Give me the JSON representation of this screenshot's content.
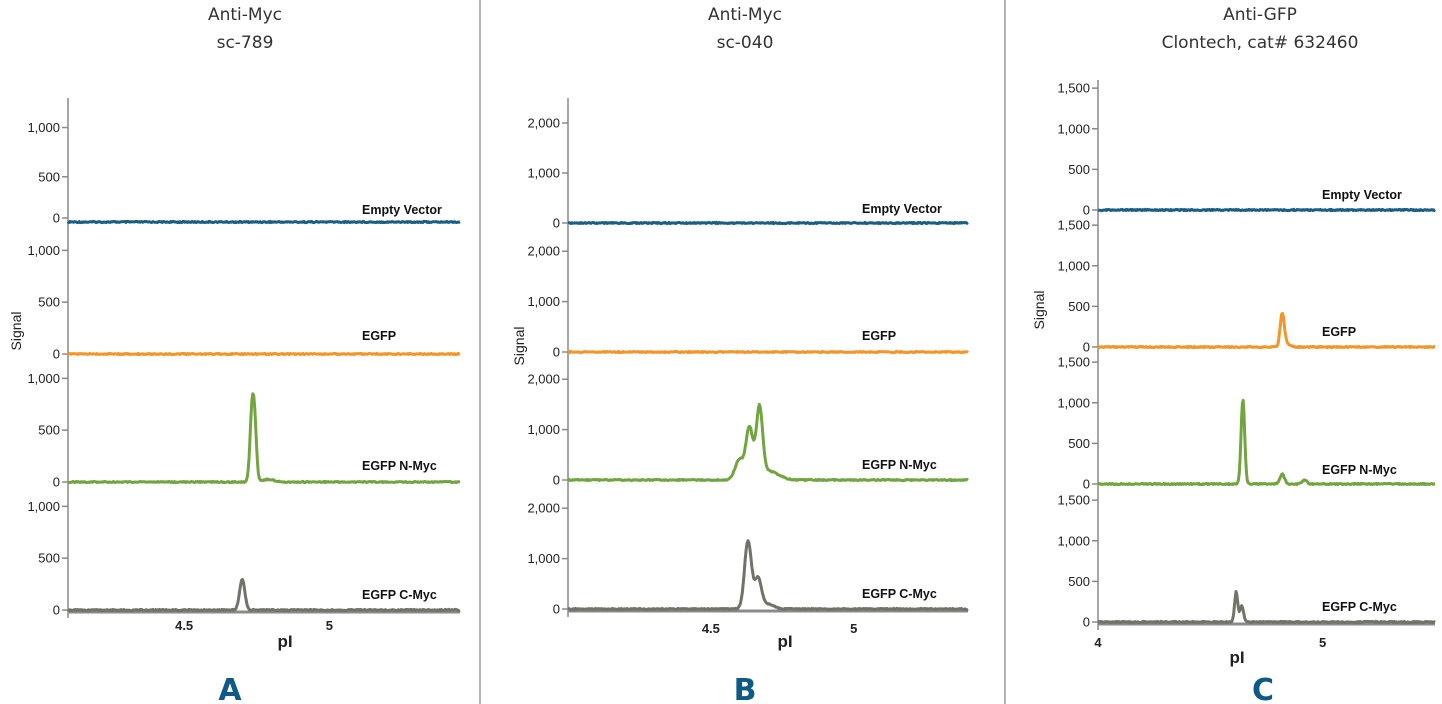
{
  "figure": {
    "panel_labels": [
      "A",
      "B",
      "C"
    ],
    "colors": {
      "empty_vector": "#1b5e84",
      "egfp": "#f2962a",
      "egfp_n_myc": "#72a440",
      "egfp_c_myc": "#727268",
      "divider": "#9a9a9a",
      "axis": "#8a8a8a",
      "panel_label": "#0e5a86"
    }
  },
  "chart_data": [
    {
      "type": "line",
      "panel": "A",
      "title": [
        "Anti-Myc",
        "sc-789"
      ],
      "xlabel": "pI",
      "ylabel": "Signal",
      "xlim": [
        4.1,
        5.45
      ],
      "x_ticks": [
        4.5,
        5
      ],
      "x_tick_labels": [
        "4.5",
        "5"
      ],
      "grid": false,
      "baseline_offset": -4,
      "series": [
        {
          "name": "Empty Vector",
          "color_key": "empty_vector",
          "ylim": [
            0,
            1300
          ],
          "y_ticks": [
            0,
            500,
            1000
          ],
          "y_tick_labels": [
            "0",
            "500",
            "1,000"
          ],
          "peaks": []
        },
        {
          "name": "EGFP",
          "color_key": "egfp",
          "ylim": [
            0,
            1100
          ],
          "y_ticks": [
            0,
            500,
            1000
          ],
          "y_tick_labels": [
            "0",
            "500",
            "1,000"
          ],
          "peaks": []
        },
        {
          "name": "EGFP N-Myc",
          "color_key": "egfp_n_myc",
          "ylim": [
            0,
            1100
          ],
          "y_ticks": [
            0,
            500,
            1000
          ],
          "y_tick_labels": [
            "0",
            "500",
            "1,000"
          ],
          "peaks": [
            {
              "x": 4.735,
              "h": 760,
              "w": 0.0075
            },
            {
              "x": 4.745,
              "h": 300,
              "w": 0.006
            },
            {
              "x": 4.79,
              "h": 25,
              "w": 0.02
            }
          ]
        },
        {
          "name": "EGFP C-Myc",
          "color_key": "egfp_c_myc",
          "ylim": [
            0,
            1100
          ],
          "y_ticks": [
            0,
            500,
            1000
          ],
          "y_tick_labels": [
            "0",
            "500",
            "1,000"
          ],
          "peaks": [
            {
              "x": 4.7,
              "h": 300,
              "w": 0.009
            }
          ]
        }
      ]
    },
    {
      "type": "line",
      "panel": "B",
      "title": [
        "Anti-Myc",
        "sc-040"
      ],
      "xlabel": "pI",
      "ylabel": "Signal",
      "xlim": [
        4.0,
        5.4
      ],
      "x_ticks": [
        4.5,
        5
      ],
      "x_tick_labels": [
        "4.5",
        "5"
      ],
      "grid": false,
      "baseline_offset": 0,
      "series": [
        {
          "name": "Empty Vector",
          "color_key": "empty_vector",
          "ylim": [
            0,
            2500
          ],
          "y_ticks": [
            0,
            1000,
            2000
          ],
          "y_tick_labels": [
            "0",
            "1,000",
            "2,000"
          ],
          "peaks": []
        },
        {
          "name": "EGFP",
          "color_key": "egfp",
          "ylim": [
            0,
            2500
          ],
          "y_ticks": [
            0,
            1000,
            2000
          ],
          "y_tick_labels": [
            "0",
            "1,000",
            "2,000"
          ],
          "peaks": []
        },
        {
          "name": "EGFP N-Myc",
          "color_key": "egfp_n_myc",
          "ylim": [
            0,
            2500
          ],
          "y_ticks": [
            0,
            1000,
            2000
          ],
          "y_tick_labels": [
            "0",
            "1,000",
            "2,000"
          ],
          "peaks": [
            {
              "x": 4.635,
              "h": 1000,
              "w": 0.012
            },
            {
              "x": 4.67,
              "h": 1350,
              "w": 0.011
            },
            {
              "x": 4.7,
              "h": 180,
              "w": 0.035
            },
            {
              "x": 4.6,
              "h": 400,
              "w": 0.015
            }
          ]
        },
        {
          "name": "EGFP C-Myc",
          "color_key": "egfp_c_myc",
          "ylim": [
            0,
            2500
          ],
          "y_ticks": [
            0,
            1000,
            2000
          ],
          "y_tick_labels": [
            "0",
            "1,000",
            "2,000"
          ],
          "peaks": [
            {
              "x": 4.63,
              "h": 1350,
              "w": 0.012
            },
            {
              "x": 4.665,
              "h": 600,
              "w": 0.012
            },
            {
              "x": 4.7,
              "h": 100,
              "w": 0.02
            }
          ]
        }
      ]
    },
    {
      "type": "line",
      "panel": "C",
      "title": [
        "Anti-GFP",
        "Clontech, cat# 632460"
      ],
      "xlabel": "pI",
      "ylabel": "Signal",
      "xlim": [
        4.0,
        5.5
      ],
      "x_ticks": [
        4,
        5
      ],
      "x_tick_labels": [
        "4",
        "5"
      ],
      "grid": false,
      "baseline_offset": 0,
      "series": [
        {
          "name": "Empty Vector",
          "color_key": "empty_vector",
          "ylim": [
            0,
            1600
          ],
          "y_ticks": [
            0,
            500,
            1000,
            1500
          ],
          "y_tick_labels": [
            "0",
            "500",
            "1,000",
            "1,500"
          ],
          "peaks": []
        },
        {
          "name": "EGFP",
          "color_key": "egfp",
          "ylim": [
            0,
            1600
          ],
          "y_ticks": [
            0,
            500,
            1000,
            1500
          ],
          "y_tick_labels": [
            "0",
            "500",
            "1,000",
            "1,500"
          ],
          "peaks": [
            {
              "x": 4.82,
              "h": 400,
              "w": 0.009
            },
            {
              "x": 4.84,
              "h": 40,
              "w": 0.015
            }
          ]
        },
        {
          "name": "EGFP N-Myc",
          "color_key": "egfp_n_myc",
          "ylim": [
            0,
            1600
          ],
          "y_ticks": [
            0,
            500,
            1000,
            1500
          ],
          "y_tick_labels": [
            "0",
            "500",
            "1,000",
            "1,500"
          ],
          "peaks": [
            {
              "x": 4.645,
              "h": 1040,
              "w": 0.008
            },
            {
              "x": 4.82,
              "h": 120,
              "w": 0.01
            },
            {
              "x": 4.92,
              "h": 50,
              "w": 0.01
            }
          ]
        },
        {
          "name": "EGFP C-Myc",
          "color_key": "egfp_c_myc",
          "ylim": [
            0,
            1600
          ],
          "y_ticks": [
            0,
            500,
            1000,
            1500
          ],
          "y_tick_labels": [
            "0",
            "500",
            "1,000",
            "1,500"
          ],
          "peaks": [
            {
              "x": 4.615,
              "h": 370,
              "w": 0.007
            },
            {
              "x": 4.64,
              "h": 200,
              "w": 0.008
            }
          ]
        }
      ]
    }
  ]
}
